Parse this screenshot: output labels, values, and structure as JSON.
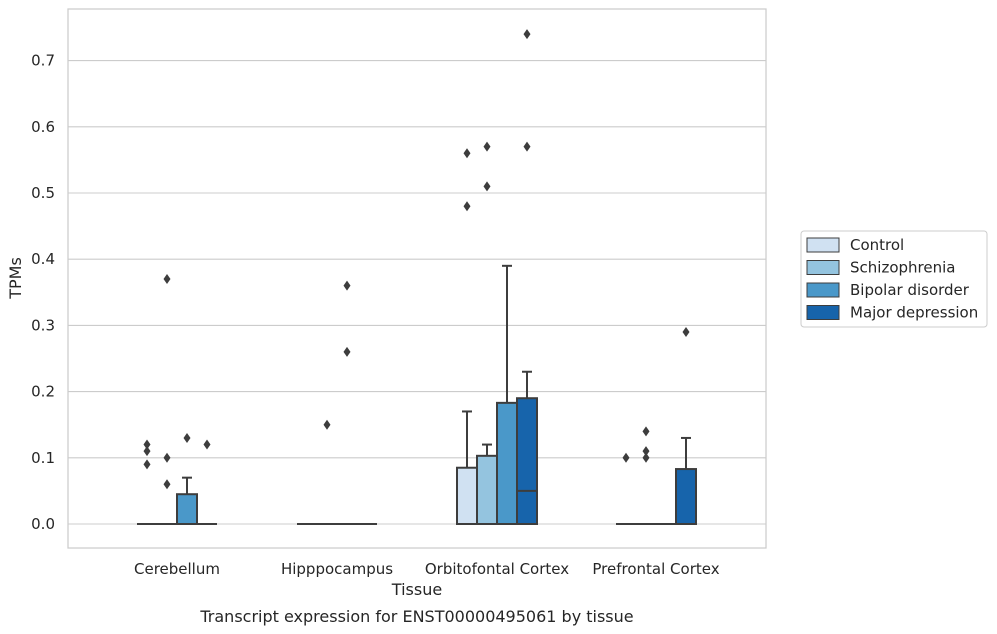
{
  "chart_data": {
    "type": "box",
    "title": "Transcript expression for ENST00000495061 by tissue",
    "xlabel": "Tissue",
    "ylabel": "TPMs",
    "ylim": [
      -0.035,
      0.77
    ],
    "yticks": [
      0.0,
      0.1,
      0.2,
      0.3,
      0.4,
      0.5,
      0.6,
      0.7
    ],
    "ytick_labels": [
      "0.0",
      "0.1",
      "0.2",
      "0.3",
      "0.4",
      "0.5",
      "0.6",
      "0.7"
    ],
    "grid": "horizontal",
    "legend_position": "outside-right",
    "categories": [
      "Cerebellum",
      "Hipppocampus",
      "Orbitofontal Cortex",
      "Prefrontal Cortex"
    ],
    "series": [
      {
        "name": "Control",
        "color": "#d0e1f2",
        "boxes": [
          {
            "q1": 0,
            "median": 0,
            "q3": 0,
            "whislo": 0,
            "whishi": 0,
            "fliers": [
              0.12,
              0.11,
              0.09
            ]
          },
          {
            "q1": 0,
            "median": 0,
            "q3": 0,
            "whislo": 0,
            "whishi": 0,
            "fliers": []
          },
          {
            "q1": 0,
            "median": 0,
            "q3": 0.085,
            "whislo": 0,
            "whishi": 0.17,
            "fliers": [
              0.56,
              0.48
            ]
          },
          {
            "q1": 0,
            "median": 0,
            "q3": 0,
            "whislo": 0,
            "whishi": 0,
            "fliers": [
              0.1
            ]
          }
        ]
      },
      {
        "name": "Schizophrenia",
        "color": "#94c4df",
        "boxes": [
          {
            "q1": 0,
            "median": 0,
            "q3": 0,
            "whislo": 0,
            "whishi": 0,
            "fliers": [
              0.37,
              0.1,
              0.06
            ]
          },
          {
            "q1": 0,
            "median": 0,
            "q3": 0,
            "whislo": 0,
            "whishi": 0,
            "fliers": [
              0.15
            ]
          },
          {
            "q1": 0,
            "median": 0,
            "q3": 0.103,
            "whislo": 0,
            "whishi": 0.12,
            "fliers": [
              0.57,
              0.51
            ]
          },
          {
            "q1": 0,
            "median": 0,
            "q3": 0,
            "whislo": 0,
            "whishi": 0,
            "fliers": [
              0.14,
              0.11,
              0.1
            ]
          }
        ]
      },
      {
        "name": "Bipolar disorder",
        "color": "#4a98c9",
        "boxes": [
          {
            "q1": 0,
            "median": 0,
            "q3": 0.045,
            "whislo": 0,
            "whishi": 0.07,
            "fliers": [
              0.13
            ]
          },
          {
            "q1": 0,
            "median": 0,
            "q3": 0,
            "whislo": 0,
            "whishi": 0,
            "fliers": [
              0.36,
              0.26
            ]
          },
          {
            "q1": 0,
            "median": 0,
            "q3": 0.183,
            "whislo": 0,
            "whishi": 0.39,
            "fliers": []
          },
          {
            "q1": 0,
            "median": 0,
            "q3": 0,
            "whislo": 0,
            "whishi": 0,
            "fliers": []
          }
        ]
      },
      {
        "name": "Major depression",
        "color": "#1764ab",
        "boxes": [
          {
            "q1": 0,
            "median": 0,
            "q3": 0,
            "whislo": 0,
            "whishi": 0,
            "fliers": [
              0.12
            ]
          },
          {
            "q1": 0,
            "median": 0,
            "q3": 0,
            "whislo": 0,
            "whishi": 0,
            "fliers": []
          },
          {
            "q1": 0,
            "median": 0.05,
            "q3": 0.19,
            "whislo": 0,
            "whishi": 0.23,
            "fliers": [
              0.74,
              0.57
            ]
          },
          {
            "q1": 0,
            "median": 0,
            "q3": 0.083,
            "whislo": 0,
            "whishi": 0.13,
            "fliers": [
              0.29
            ]
          }
        ]
      }
    ]
  }
}
